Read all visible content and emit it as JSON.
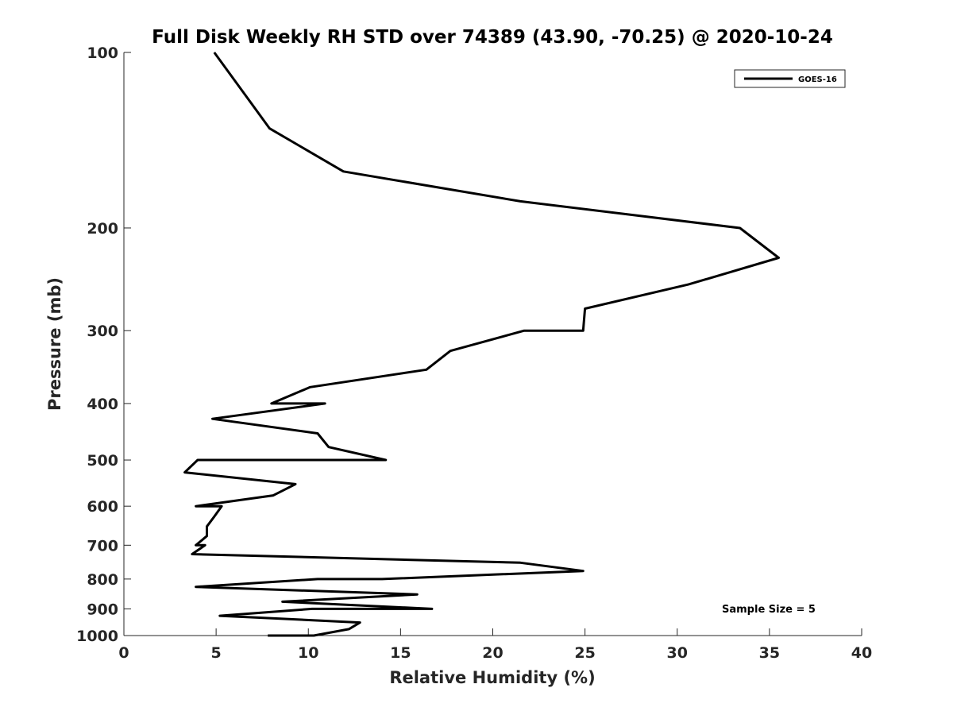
{
  "chart_data": {
    "type": "line",
    "title": "Full Disk Weekly RH STD over 74389 (43.90, -70.25) @ 2020-10-24",
    "xlabel": "Relative Humidity (%)",
    "ylabel": "Pressure (mb)",
    "xlim": [
      0,
      40
    ],
    "ylim": [
      100,
      1000
    ],
    "yscale": "log",
    "yreversed": true,
    "xticks": [
      0,
      5,
      10,
      15,
      20,
      25,
      30,
      35,
      40
    ],
    "yticks": [
      100,
      200,
      300,
      400,
      500,
      600,
      700,
      800,
      900,
      1000
    ],
    "legend": {
      "position": "top-right",
      "entries": [
        "GOES-16"
      ]
    },
    "annotation": "Sample Size = 5",
    "series": [
      {
        "name": "GOES-16",
        "color": "#000000",
        "points": [
          [
            4.9,
            100
          ],
          [
            6.3,
            115
          ],
          [
            7.9,
            135
          ],
          [
            11.9,
            160
          ],
          [
            21.5,
            180
          ],
          [
            33.4,
            200
          ],
          [
            35.5,
            225
          ],
          [
            30.6,
            250
          ],
          [
            25.0,
            275
          ],
          [
            24.9,
            300
          ],
          [
            21.7,
            300
          ],
          [
            17.7,
            325
          ],
          [
            16.4,
            350
          ],
          [
            10.1,
            375
          ],
          [
            8.0,
            400
          ],
          [
            10.9,
            400
          ],
          [
            4.8,
            425
          ],
          [
            10.5,
            450
          ],
          [
            11.1,
            475
          ],
          [
            14.2,
            500
          ],
          [
            4.0,
            500
          ],
          [
            3.3,
            525
          ],
          [
            9.3,
            550
          ],
          [
            8.1,
            575
          ],
          [
            3.9,
            600
          ],
          [
            5.3,
            600
          ],
          [
            4.9,
            625
          ],
          [
            4.5,
            650
          ],
          [
            4.5,
            675
          ],
          [
            3.9,
            700
          ],
          [
            4.4,
            700
          ],
          [
            3.7,
            725
          ],
          [
            21.5,
            750
          ],
          [
            24.9,
            775
          ],
          [
            14.0,
            800
          ],
          [
            10.5,
            800
          ],
          [
            3.9,
            825
          ],
          [
            15.9,
            850
          ],
          [
            8.6,
            875
          ],
          [
            16.7,
            900
          ],
          [
            10.2,
            900
          ],
          [
            5.2,
            925
          ],
          [
            12.8,
            950
          ],
          [
            12.2,
            975
          ],
          [
            10.3,
            1000
          ],
          [
            7.8,
            1000
          ]
        ]
      }
    ]
  }
}
